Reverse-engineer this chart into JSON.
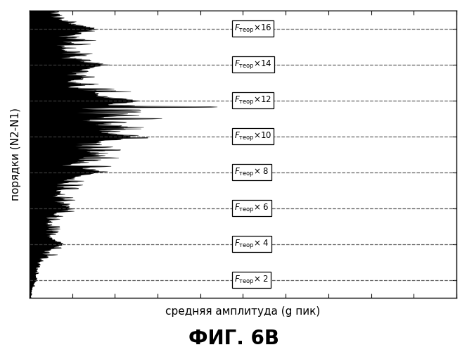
{
  "title": "ФИГ. 6В",
  "xlabel": "средняя амплитуда (g пик)",
  "ylabel": "порядки (N2-N1)",
  "background_color": "#ffffff",
  "harmonic_multipliers": [
    2,
    4,
    6,
    8,
    10,
    12,
    14,
    16
  ],
  "dashed_line_color": "#444444",
  "signal_color": "#000000",
  "title_fontsize": 20,
  "label_fontsize": 11,
  "ylabel_fontsize": 11,
  "n_rows": 800,
  "n_cols": 300
}
